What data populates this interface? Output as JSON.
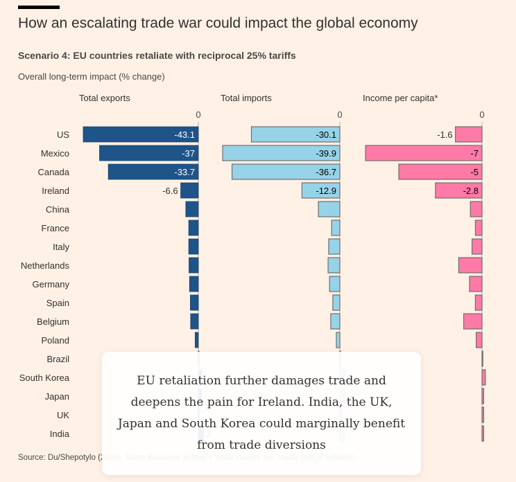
{
  "title": "How an escalating trade war could impact the global economy",
  "subtitle": "Scenario 4: EU countries retaliate with reciprocal 25% tariffs",
  "unit_label": "Overall long-term impact (% change)",
  "source": "Source: Du/Shepotylo (2025), Aston Business School • *Real income per capita (net of inflation)",
  "overlay_text": "EU retaliation further damages trade and deepens the pain for Ireland. India, the UK, Japan and South Korea could marginally benefit from trade diversions",
  "chart_data": {
    "type": "bar",
    "orientation": "horizontal",
    "categories": [
      "US",
      "Mexico",
      "Canada",
      "Ireland",
      "China",
      "France",
      "Italy",
      "Netherlands",
      "Germany",
      "Spain",
      "Belgium",
      "Poland",
      "Brazil",
      "South Korea",
      "Japan",
      "UK",
      "India"
    ],
    "zero_tick": "0",
    "panels": [
      {
        "title": "Total exports",
        "color": "#1f5489",
        "label_color": "#ffffff",
        "xlim": [
          -43.1,
          2
        ],
        "values": [
          -43.1,
          -37,
          -33.7,
          -6.6,
          -4.7,
          -3.6,
          -3.6,
          -3.5,
          -3.3,
          -3.0,
          -2.9,
          -1.2,
          0,
          1.2,
          1.2,
          0.2,
          2
        ],
        "labels": [
          "-43.1",
          "-37",
          "-33.7",
          "-6.6",
          "",
          "",
          "",
          "",
          "",
          "",
          "",
          "",
          "",
          "",
          "",
          "",
          "2"
        ]
      },
      {
        "title": "Total imports",
        "color": "#96d3e8",
        "label_color": "#000000",
        "xlim": [
          -39.9,
          2
        ],
        "values": [
          -30.1,
          -39.9,
          -36.7,
          -12.9,
          -7.3,
          -2.8,
          -3.8,
          -4.0,
          -3.5,
          -2.4,
          -3.1,
          -1.2,
          0.1,
          1.5,
          1.5,
          0.5,
          1.5
        ],
        "labels": [
          "-30.1",
          "-39.9",
          "-36.7",
          "-12.9",
          "",
          "",
          "",
          "",
          "",
          "",
          "",
          "",
          "",
          "",
          "",
          "",
          ""
        ]
      },
      {
        "title": "Income per capita*",
        "color": "#ff7aa6",
        "label_color": "#000000",
        "xlim": [
          -7,
          0.3
        ],
        "values": [
          -1.6,
          -7,
          -5,
          -2.8,
          -0.7,
          -0.4,
          -0.6,
          -1.4,
          -0.75,
          -0.4,
          -1.1,
          -0.35,
          0.05,
          0.2,
          0.1,
          0.1,
          0.1
        ],
        "labels": [
          "-1.6",
          "-7",
          "-5",
          "-2.8",
          "",
          "",
          "",
          "",
          "",
          "",
          "",
          "",
          "",
          "",
          "",
          "",
          ""
        ]
      }
    ]
  }
}
